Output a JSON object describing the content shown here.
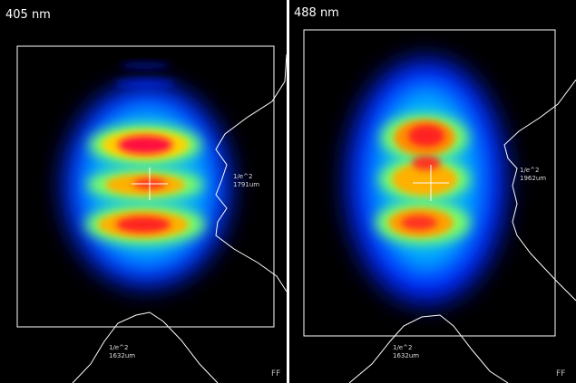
{
  "panels": [
    {
      "label": "405 nm",
      "side_label": "1/e^2",
      "side_value": "1791um",
      "bottom_label": "1/e^2",
      "bottom_value": "1632um",
      "mode": "FF"
    },
    {
      "label": "488 nm",
      "side_label": "1/e^2",
      "side_value": "1962um",
      "bottom_label": "1/e^2",
      "bottom_value": "1632um",
      "mode": "FF"
    }
  ]
}
